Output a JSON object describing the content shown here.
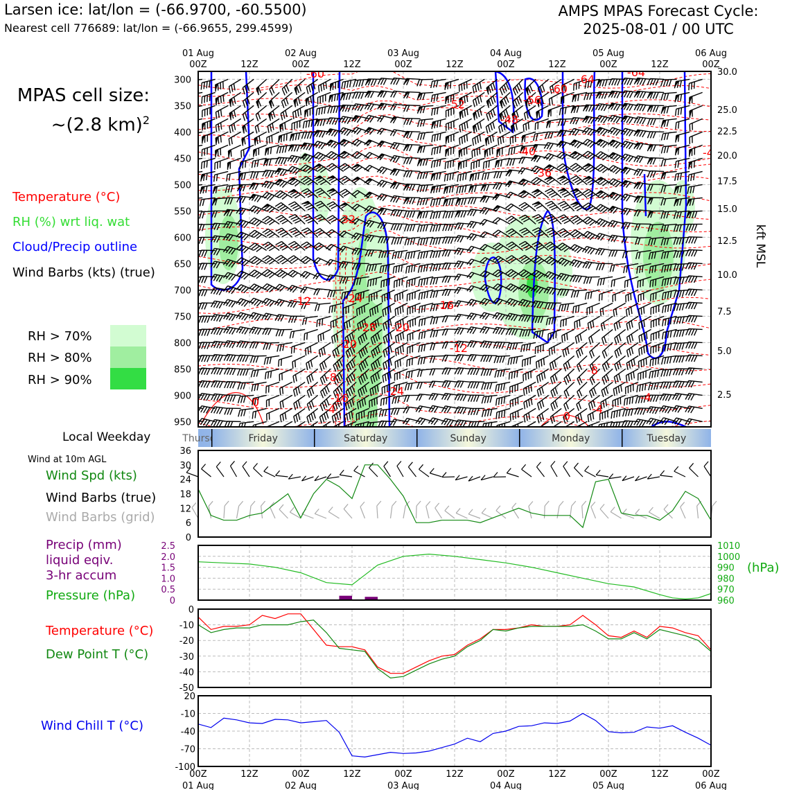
{
  "header": {
    "title_left": "Larsen ice: lat/lon = (-66.9700, -60.5500)",
    "subtitle_left": "Nearest cell 776689: lat/lon = (-66.9655, 299.4599)",
    "title_right_line1": "AMPS MPAS Forecast Cycle:",
    "title_right_line2": "2025-08-01 / 00 UTC"
  },
  "cell_size": {
    "line1": "MPAS cell size:",
    "line2": "~(2.8 km)",
    "sup": "2"
  },
  "legend": {
    "temperature": "Temperature (°C)",
    "rh": "RH (%) wrt liq. wat",
    "cloud": "Cloud/Precip outline",
    "wind": "Wind Barbs (kts) (true)",
    "rh70": "RH > 70%",
    "rh80": "RH > 80%",
    "rh90": "RH > 90%",
    "colors": {
      "temp": "#ff0000",
      "rh": "#33dd33",
      "cloud": "#0000ff",
      "rh70": "#d2fcd2",
      "rh80": "#a0eea0",
      "rh90": "#33dd44"
    }
  },
  "time_axis": {
    "day_labels": [
      "01 Aug",
      "02 Aug",
      "03 Aug",
      "04 Aug",
      "05 Aug",
      "06 Aug"
    ],
    "hour_labels": [
      "00Z",
      "12Z",
      "00Z",
      "12Z",
      "00Z",
      "12Z",
      "00Z",
      "12Z",
      "00Z",
      "12Z",
      "00Z"
    ]
  },
  "weekday": {
    "label": "Local Weekday",
    "days": [
      "Thursday",
      "Friday",
      "Saturday",
      "Sunday",
      "Monday",
      "Tuesday"
    ]
  },
  "panels": {
    "wind_title": "Wind at 10m AGL",
    "wind_spd": "Wind Spd (kts)",
    "wind_barbs_true": "Wind Barbs (true)",
    "wind_barbs_grid": "Wind Barbs (grid)",
    "precip1": "Precip (mm)",
    "precip2": "liquid eqiv.",
    "precip3": "3-hr accum",
    "pressure": "Pressure (hPa)",
    "pressure_unit": "(hPa)",
    "temp": "Temperature (°C)",
    "dewpt": "Dew Point T (°C)",
    "windchill": "Wind Chill T (°C)"
  },
  "chart_data": [
    {
      "type": "heatmap",
      "name": "time-height cross section",
      "x_hours": [
        0,
        120
      ],
      "y_pressure_ticks": [
        300,
        350,
        400,
        450,
        500,
        550,
        600,
        650,
        700,
        750,
        800,
        850,
        900,
        950
      ],
      "y_kft_ticks": [
        "30.0",
        "25.0",
        "22.5",
        "20.0",
        "17.5",
        "15.0",
        "12.5",
        "10.0",
        "7.5",
        "5.0",
        "2.5"
      ],
      "y_kft_label": "kft MSL",
      "temp_contour_labels": [
        "-64",
        "-60",
        "-52",
        "-56",
        "-48",
        "-40",
        "-36",
        "-32",
        "-24",
        "-28",
        "-20",
        "-12",
        "-16",
        "-8",
        "-4",
        "0",
        "-24",
        "-20",
        "-12",
        "-8",
        "-4",
        "-16",
        "-4",
        "0"
      ]
    },
    {
      "type": "line",
      "name": "wind speed 10m",
      "x_hours": [
        0,
        3,
        6,
        9,
        12,
        15,
        18,
        21,
        24,
        27,
        30,
        33,
        36,
        39,
        42,
        45,
        48,
        51,
        54,
        57,
        60,
        63,
        66,
        69,
        72,
        75,
        78,
        81,
        84,
        87,
        90,
        93,
        96,
        99,
        102,
        105,
        108,
        111,
        114,
        117,
        120
      ],
      "values": [
        20,
        9,
        7,
        7,
        9,
        10,
        14,
        18,
        8,
        18,
        24,
        21,
        16,
        30,
        30,
        24,
        17,
        6,
        6,
        7,
        7,
        7,
        6,
        8,
        10,
        12,
        10,
        9,
        9,
        9,
        4,
        23,
        24,
        10,
        9,
        9,
        7,
        11,
        19,
        16,
        7
      ],
      "ylim": [
        0,
        36
      ],
      "yticks": [
        0,
        6,
        12,
        18,
        24,
        30,
        36
      ],
      "color": "#118811"
    },
    {
      "type": "line",
      "name": "pressure",
      "x_hours": [
        0,
        6,
        12,
        18,
        24,
        30,
        36,
        39,
        42,
        48,
        54,
        60,
        66,
        72,
        78,
        84,
        90,
        96,
        102,
        108,
        111,
        114,
        117,
        120
      ],
      "values": [
        995,
        994,
        993,
        990,
        985,
        976,
        974,
        983,
        992,
        1000,
        1002,
        1000,
        997,
        994,
        990,
        985,
        980,
        975,
        972,
        965,
        962,
        961,
        962,
        966
      ],
      "ylim": [
        960,
        1010
      ],
      "yticks": [
        960,
        970,
        980,
        990,
        1000,
        1010
      ],
      "precip": {
        "x_hours": [
          33,
          39
        ],
        "values": [
          0.2,
          0.15
        ]
      },
      "precip_ylim": [
        0,
        2.5
      ],
      "precip_yticks": [
        "0",
        "0.5",
        "1.0",
        "1.5",
        "2.0",
        "2.5"
      ]
    },
    {
      "type": "line",
      "name": "temperature and dew point",
      "x_hours": [
        0,
        3,
        6,
        9,
        12,
        15,
        18,
        21,
        24,
        27,
        30,
        33,
        36,
        39,
        42,
        45,
        48,
        51,
        54,
        57,
        60,
        63,
        66,
        69,
        72,
        75,
        78,
        81,
        84,
        87,
        90,
        93,
        96,
        99,
        102,
        105,
        108,
        111,
        114,
        117,
        120
      ],
      "series": [
        {
          "name": "Temperature (°C)",
          "color": "#ff0000",
          "values": [
            -5,
            -13,
            -11,
            -11,
            -10,
            -4,
            -6,
            -3,
            -3,
            -13,
            -23,
            -24,
            -24,
            -26,
            -37,
            -41,
            -41,
            -37,
            -33,
            -30,
            -29,
            -23,
            -19,
            -13,
            -13,
            -12,
            -10,
            -11,
            -11,
            -10,
            -4,
            -10,
            -17,
            -18,
            -14,
            -18,
            -11,
            -12,
            -15,
            -17,
            -26
          ]
        },
        {
          "name": "Dew Point T (°C)",
          "color": "#118811",
          "values": [
            -10,
            -15,
            -13,
            -12,
            -12,
            -10,
            -10,
            -10,
            -8,
            -7,
            -15,
            -25,
            -26,
            -27,
            -38,
            -44,
            -43,
            -39,
            -35,
            -32,
            -30,
            -24,
            -20,
            -13,
            -14,
            -12,
            -11,
            -11,
            -11,
            -11,
            -10,
            -14,
            -19,
            -19,
            -15,
            -19,
            -13,
            -15,
            -17,
            -20,
            -27
          ]
        }
      ],
      "ylim": [
        -50,
        0
      ],
      "yticks": [
        0,
        -10,
        -20,
        -30,
        -40,
        -50
      ]
    },
    {
      "type": "line",
      "name": "wind chill",
      "x_hours": [
        0,
        3,
        6,
        9,
        12,
        15,
        18,
        21,
        24,
        27,
        30,
        33,
        36,
        39,
        42,
        45,
        48,
        51,
        54,
        57,
        60,
        63,
        66,
        69,
        72,
        75,
        78,
        81,
        84,
        87,
        90,
        93,
        96,
        99,
        102,
        105,
        108,
        111,
        114,
        117,
        120
      ],
      "values": [
        -28,
        -34,
        -18,
        -21,
        -26,
        -27,
        -20,
        -21,
        -26,
        -24,
        -22,
        -42,
        -82,
        -84,
        -80,
        -76,
        -78,
        -77,
        -74,
        -68,
        -62,
        -52,
        -58,
        -44,
        -40,
        -32,
        -31,
        -26,
        -27,
        -23,
        -10,
        -22,
        -41,
        -43,
        -42,
        -33,
        -35,
        -31,
        -42,
        -52,
        -64
      ],
      "ylim": [
        -100,
        20
      ],
      "yticks": [
        20,
        -10,
        -40,
        -70,
        -100
      ],
      "color": "#0000ee"
    }
  ]
}
